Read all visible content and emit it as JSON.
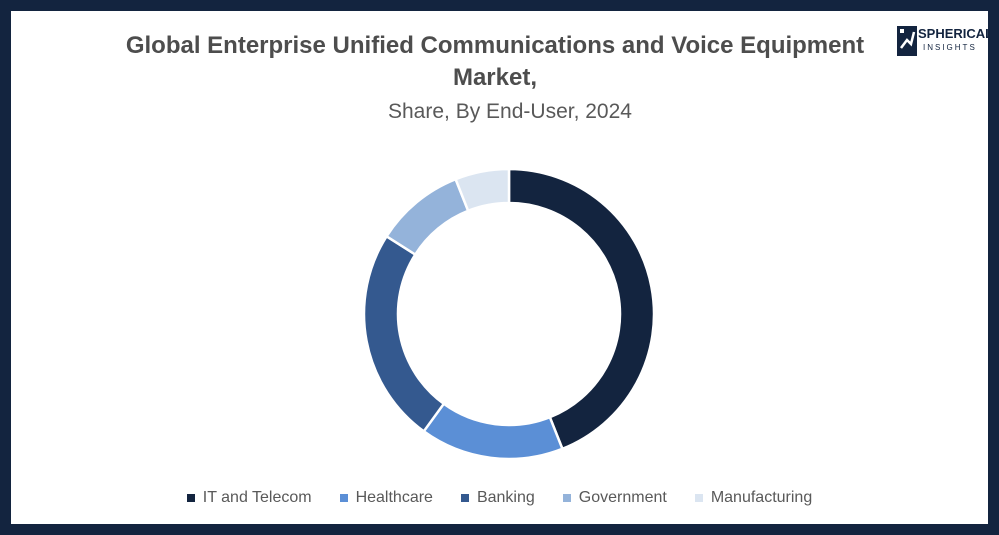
{
  "chart_data": {
    "type": "pie",
    "variant": "donut",
    "title": "Global Enterprise Unified Communications and Voice Equipment Market,",
    "subtitle": "Share, By End-User, 2024",
    "categories": [
      "IT and Telecom",
      "Healthcare",
      "Banking",
      "Government",
      "Manufacturing"
    ],
    "values": [
      44,
      16,
      24,
      10,
      6
    ],
    "colors": [
      "#13243f",
      "#5b8fd6",
      "#34598f",
      "#94b3da",
      "#dbe5f1"
    ],
    "legend_position": "bottom"
  },
  "logo": {
    "line1": "SPHERICAL",
    "line2": "INSIGHTS"
  }
}
